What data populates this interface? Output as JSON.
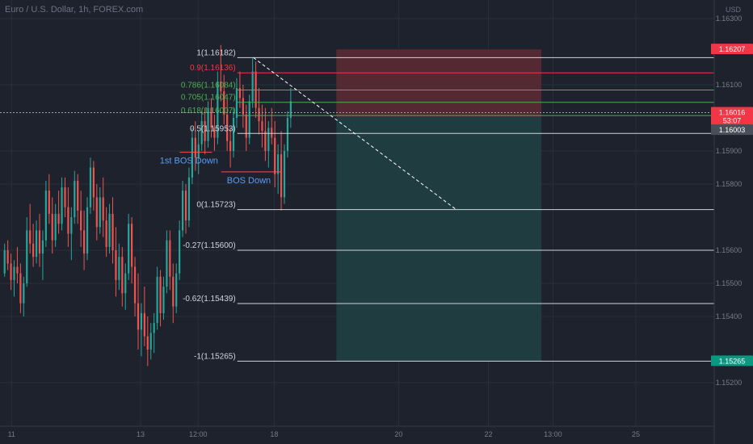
{
  "header": {
    "title": "Euro / U.S. Dollar, 1h, FOREX.com",
    "currency": "USD"
  },
  "colors": {
    "background": "#1e222d",
    "up": "#26a69a",
    "down": "#ef5350",
    "fib_white": "#d1d4dc",
    "fib_red": "#f23645",
    "fib_green": "#4caf50",
    "stop_zone": "#5a2a33",
    "target_zone": "#1f3f42",
    "bos": "#5b9cf6",
    "axis_text": "#787b86"
  },
  "chart_data": {
    "type": "candlestick",
    "symbol": "EURUSD",
    "timeframe": "1h",
    "ylim": [
      1.152,
      1.165
    ],
    "y_ticks": [
      "1.16300",
      "1.16100",
      "1.15900",
      "1.15800",
      "1.15600",
      "1.15500",
      "1.15400",
      "1.15200"
    ],
    "y_tick_values": [
      1.163,
      1.161,
      1.159,
      1.158,
      1.156,
      1.155,
      1.154,
      1.152
    ],
    "x_ticks": [
      "11",
      "13",
      "12:00",
      "18",
      "20",
      "22",
      "13:00",
      "25"
    ],
    "x_tick_positions": [
      5,
      61,
      86,
      119,
      173,
      212,
      240,
      276
    ],
    "x_range": [
      0,
      310
    ],
    "fib_levels": [
      {
        "label": "1(1.16182)",
        "value": 1.16182,
        "color": "white"
      },
      {
        "label": "0.9(1.16136)",
        "value": 1.16136,
        "color": "red"
      },
      {
        "label": "0.786(1.16084)",
        "value": 1.16084,
        "color": "green"
      },
      {
        "label": "0.705(1.16047)",
        "value": 1.16047,
        "color": "green"
      },
      {
        "label": "0.618(1.16007)",
        "value": 1.16007,
        "color": "green"
      },
      {
        "label": "0.5(1.15953)",
        "value": 1.15953,
        "color": "white"
      },
      {
        "label": "0(1.15723)",
        "value": 1.15723,
        "color": "white"
      },
      {
        "label": "-0.27(1.15600)",
        "value": 1.156,
        "color": "white"
      },
      {
        "label": "-0.62(1.15439)",
        "value": 1.15439,
        "color": "white"
      },
      {
        "label": "-1(1.15265)",
        "value": 1.15265,
        "color": "white"
      }
    ],
    "annotations": [
      {
        "text": "1st BOS Down",
        "x": 82,
        "y": 1.15896,
        "line_x": [
          78,
          92
        ]
      },
      {
        "text": "BOS Down",
        "x": 108,
        "y": 1.15837,
        "line_x": [
          96,
          122
        ]
      }
    ],
    "price_tags": [
      {
        "label": "1.16207",
        "value": 1.16207,
        "color": "#f23645"
      },
      {
        "label": "1.16016",
        "value": 1.16016,
        "color": "#f23645"
      },
      {
        "label": "53:07",
        "value": 1.15992,
        "color": "#f23645"
      },
      {
        "label": "1.16003",
        "value": 1.15963,
        "color": "#4a4e5a"
      },
      {
        "label": "1.15265",
        "value": 1.15265,
        "color": "#089981"
      }
    ],
    "current_price": 1.16016,
    "position": {
      "type": "short",
      "entry": 1.16003,
      "stop": 1.16207,
      "target": 1.15265,
      "x_start": 146,
      "x_end": 235
    },
    "trend_line": {
      "from": [
        110,
        1.16182
      ],
      "to": [
        198,
        1.15723
      ]
    },
    "candles": [
      [
        1.1553,
        1.1562,
        1.1552,
        1.156
      ],
      [
        1.156,
        1.1563,
        1.1554,
        1.1556
      ],
      [
        1.1556,
        1.1559,
        1.1548,
        1.1551
      ],
      [
        1.1551,
        1.1557,
        1.1546,
        1.1555
      ],
      [
        1.1555,
        1.1561,
        1.155,
        1.1553
      ],
      [
        1.1553,
        1.1556,
        1.1541,
        1.1544
      ],
      [
        1.1544,
        1.1552,
        1.154,
        1.155
      ],
      [
        1.155,
        1.157,
        1.1549,
        1.1566
      ],
      [
        1.1566,
        1.1574,
        1.1559,
        1.1562
      ],
      [
        1.1562,
        1.1568,
        1.1555,
        1.1558
      ],
      [
        1.1558,
        1.1569,
        1.1556,
        1.1566
      ],
      [
        1.1566,
        1.1571,
        1.1555,
        1.1559
      ],
      [
        1.1559,
        1.1566,
        1.1551,
        1.1563
      ],
      [
        1.1563,
        1.1581,
        1.1561,
        1.1578
      ],
      [
        1.1578,
        1.1583,
        1.1568,
        1.1571
      ],
      [
        1.1571,
        1.1576,
        1.1559,
        1.1563
      ],
      [
        1.1563,
        1.1574,
        1.1561,
        1.1571
      ],
      [
        1.1571,
        1.1578,
        1.1565,
        1.1568
      ],
      [
        1.1568,
        1.1582,
        1.1566,
        1.1579
      ],
      [
        1.1579,
        1.1582,
        1.157,
        1.1573
      ],
      [
        1.1573,
        1.1579,
        1.1561,
        1.1565
      ],
      [
        1.1565,
        1.1573,
        1.1557,
        1.157
      ],
      [
        1.157,
        1.1584,
        1.1568,
        1.1581
      ],
      [
        1.1581,
        1.1583,
        1.1568,
        1.1572
      ],
      [
        1.1572,
        1.1578,
        1.1561,
        1.1566
      ],
      [
        1.1566,
        1.1572,
        1.1554,
        1.1559
      ],
      [
        1.1559,
        1.1576,
        1.1557,
        1.1573
      ],
      [
        1.1573,
        1.1588,
        1.1571,
        1.1585
      ],
      [
        1.1585,
        1.1587,
        1.1572,
        1.1576
      ],
      [
        1.1576,
        1.158,
        1.1563,
        1.1567
      ],
      [
        1.1567,
        1.1579,
        1.1565,
        1.1576
      ],
      [
        1.1576,
        1.1582,
        1.1564,
        1.1569
      ],
      [
        1.1569,
        1.1573,
        1.1558,
        1.1561
      ],
      [
        1.1561,
        1.1574,
        1.1559,
        1.1571
      ],
      [
        1.1571,
        1.1576,
        1.1556,
        1.156
      ],
      [
        1.156,
        1.1567,
        1.1546,
        1.1551
      ],
      [
        1.1551,
        1.1562,
        1.1548,
        1.1558
      ],
      [
        1.1558,
        1.1561,
        1.1543,
        1.1547
      ],
      [
        1.1547,
        1.1556,
        1.1542,
        1.1553
      ],
      [
        1.1553,
        1.1571,
        1.1551,
        1.1568
      ],
      [
        1.1568,
        1.157,
        1.155,
        1.1555
      ],
      [
        1.1555,
        1.1558,
        1.154,
        1.1544
      ],
      [
        1.1544,
        1.1553,
        1.153,
        1.1536
      ],
      [
        1.1536,
        1.1544,
        1.1528,
        1.1541
      ],
      [
        1.1541,
        1.1549,
        1.1531,
        1.1534
      ],
      [
        1.1534,
        1.154,
        1.1525,
        1.153
      ],
      [
        1.153,
        1.1538,
        1.1527,
        1.1535
      ],
      [
        1.1535,
        1.1541,
        1.1529,
        1.1538
      ],
      [
        1.1538,
        1.1555,
        1.1536,
        1.1552
      ],
      [
        1.1552,
        1.1554,
        1.1537,
        1.1541
      ],
      [
        1.1541,
        1.1552,
        1.1539,
        1.1549
      ],
      [
        1.1549,
        1.1566,
        1.1547,
        1.1563
      ],
      [
        1.1563,
        1.1566,
        1.1548,
        1.1552
      ],
      [
        1.1552,
        1.1556,
        1.1538,
        1.1543
      ],
      [
        1.1543,
        1.1556,
        1.1541,
        1.1553
      ],
      [
        1.1553,
        1.1569,
        1.1551,
        1.1566
      ],
      [
        1.1566,
        1.1581,
        1.1564,
        1.1578
      ],
      [
        1.1578,
        1.158,
        1.1565,
        1.1569
      ],
      [
        1.1569,
        1.1585,
        1.1567,
        1.1582
      ],
      [
        1.1582,
        1.1597,
        1.158,
        1.1594
      ],
      [
        1.1594,
        1.1599,
        1.1584,
        1.1588
      ],
      [
        1.1588,
        1.1596,
        1.1583,
        1.1592
      ],
      [
        1.1592,
        1.1602,
        1.159,
        1.1599
      ],
      [
        1.1599,
        1.1603,
        1.1589,
        1.1593
      ],
      [
        1.1593,
        1.1605,
        1.1591,
        1.1603
      ],
      [
        1.1603,
        1.1606,
        1.1594,
        1.1597
      ],
      [
        1.1597,
        1.1601,
        1.159,
        1.1594
      ],
      [
        1.1594,
        1.1614,
        1.1592,
        1.1611
      ],
      [
        1.1611,
        1.1622,
        1.1605,
        1.1608
      ],
      [
        1.1608,
        1.1613,
        1.1598,
        1.1601
      ],
      [
        1.1601,
        1.1606,
        1.159,
        1.1593
      ],
      [
        1.1593,
        1.1597,
        1.1585,
        1.159
      ],
      [
        1.159,
        1.1603,
        1.1588,
        1.16
      ],
      [
        1.16,
        1.1612,
        1.1597,
        1.1609
      ],
      [
        1.1609,
        1.1614,
        1.1603,
        1.1606
      ],
      [
        1.1606,
        1.161,
        1.1597,
        1.1601
      ],
      [
        1.1601,
        1.1604,
        1.159,
        1.1594
      ],
      [
        1.1594,
        1.1607,
        1.1592,
        1.1605
      ],
      [
        1.1605,
        1.1618,
        1.1603,
        1.1614
      ],
      [
        1.1614,
        1.1617,
        1.16,
        1.1603
      ],
      [
        1.1603,
        1.1609,
        1.1595,
        1.1599
      ],
      [
        1.1599,
        1.1604,
        1.1591,
        1.1596
      ],
      [
        1.1596,
        1.1603,
        1.1587,
        1.159
      ],
      [
        1.159,
        1.1599,
        1.1585,
        1.1597
      ],
      [
        1.1597,
        1.1603,
        1.1592,
        1.1594
      ],
      [
        1.1594,
        1.1599,
        1.1579,
        1.1583
      ],
      [
        1.1583,
        1.1592,
        1.1577,
        1.1589
      ],
      [
        1.1589,
        1.1596,
        1.1572,
        1.1576
      ],
      [
        1.1576,
        1.1592,
        1.1574,
        1.159
      ],
      [
        1.159,
        1.1602,
        1.1588,
        1.16
      ],
      [
        1.16,
        1.1609,
        1.1597,
        1.1605
      ]
    ]
  }
}
